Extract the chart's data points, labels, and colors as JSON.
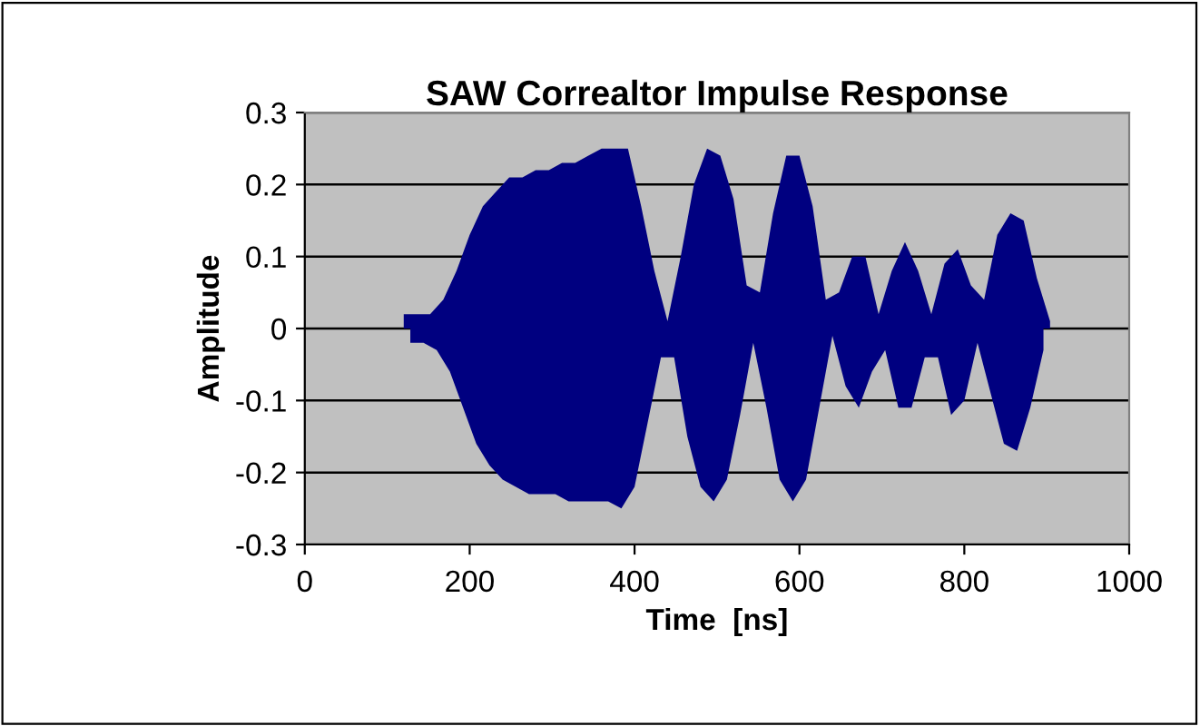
{
  "chart_data": {
    "type": "area",
    "title": "SAW Correaltor Impulse Response",
    "xlabel": "Time  [ns]",
    "ylabel": "Amplitude",
    "xlim": [
      0,
      1000
    ],
    "xticks": [
      0,
      200,
      400,
      600,
      800,
      1000
    ],
    "ylim": [
      -0.3,
      0.3
    ],
    "yticks": [
      {
        "value": -0.3,
        "label": "-0.3"
      },
      {
        "value": -0.2,
        "label": "-0.2"
      },
      {
        "value": -0.1,
        "label": "-0.1"
      },
      {
        "value": 0,
        "label": "0"
      },
      {
        "value": 0.1,
        "label": "0.1"
      },
      {
        "value": 0.2,
        "label": "0.2"
      },
      {
        "value": 0.3,
        "label": "0.3"
      }
    ],
    "grid": "y",
    "legend": false,
    "series": [
      {
        "color": "#000080",
        "x": [
          120,
          136,
          152,
          168,
          184,
          200,
          216,
          232,
          248,
          264,
          280,
          296,
          312,
          328,
          344,
          360,
          376,
          392,
          408,
          424,
          440,
          456,
          472,
          488,
          504,
          520,
          536,
          552,
          568,
          584,
          600,
          616,
          632,
          648,
          664,
          680,
          696,
          712,
          728,
          744,
          760,
          776,
          792,
          808,
          824,
          840,
          856,
          872,
          888,
          904
        ],
        "values": [
          0.02,
          0.02,
          0.02,
          0.04,
          0.08,
          0.13,
          0.17,
          0.19,
          0.21,
          0.21,
          0.22,
          0.22,
          0.23,
          0.23,
          0.24,
          0.25,
          0.25,
          0.25,
          0.17,
          0.08,
          0.01,
          0.1,
          0.2,
          0.25,
          0.24,
          0.18,
          0.06,
          0.05,
          0.16,
          0.24,
          0.24,
          0.17,
          0.04,
          0.05,
          0.1,
          0.1,
          0.02,
          0.08,
          0.12,
          0.08,
          0.02,
          0.09,
          0.11,
          0.06,
          0.04,
          0.13,
          0.16,
          0.15,
          0.07,
          0.01
        ]
      },
      {
        "color": "#000080",
        "x": [
          128,
          144,
          160,
          176,
          192,
          208,
          224,
          240,
          256,
          272,
          288,
          304,
          320,
          336,
          352,
          368,
          384,
          400,
          416,
          432,
          448,
          464,
          480,
          496,
          512,
          528,
          544,
          560,
          576,
          592,
          608,
          624,
          640,
          656,
          672,
          688,
          704,
          720,
          736,
          752,
          768,
          784,
          800,
          816,
          832,
          848,
          864,
          880,
          896
        ],
        "values": [
          -0.02,
          -0.02,
          -0.03,
          -0.06,
          -0.11,
          -0.16,
          -0.19,
          -0.21,
          -0.22,
          -0.23,
          -0.23,
          -0.23,
          -0.24,
          -0.24,
          -0.24,
          -0.24,
          -0.25,
          -0.22,
          -0.13,
          -0.04,
          -0.04,
          -0.15,
          -0.22,
          -0.24,
          -0.21,
          -0.12,
          -0.02,
          -0.11,
          -0.21,
          -0.24,
          -0.21,
          -0.11,
          -0.01,
          -0.08,
          -0.11,
          -0.06,
          -0.03,
          -0.11,
          -0.11,
          -0.04,
          -0.04,
          -0.12,
          -0.1,
          -0.02,
          -0.09,
          -0.16,
          -0.17,
          -0.11,
          -0.03
        ]
      }
    ]
  }
}
